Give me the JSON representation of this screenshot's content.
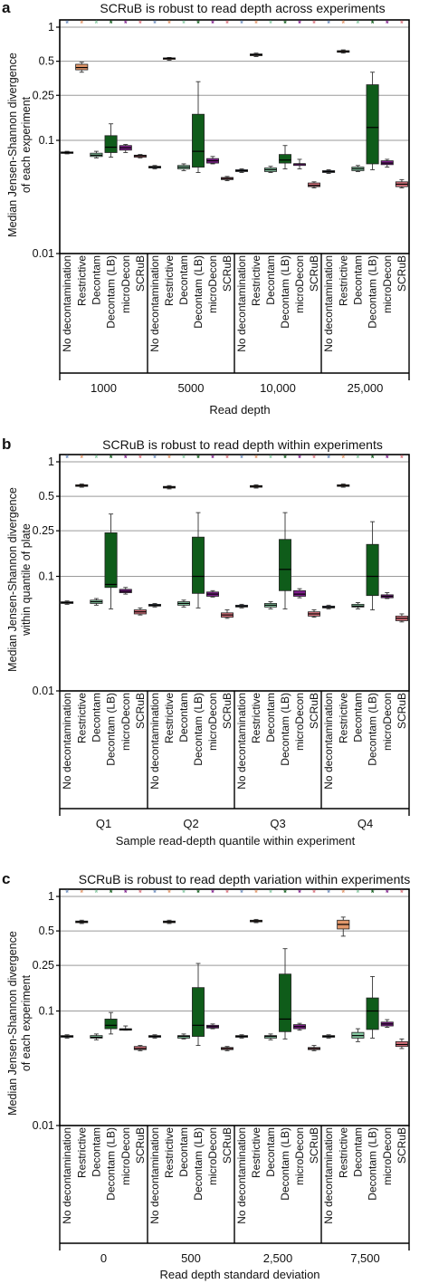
{
  "panel_letters": [
    "a",
    "b",
    "c"
  ],
  "methods": [
    "No decontamination",
    "Restrictive",
    "Decontam",
    "Decontam (LB)",
    "microDecon",
    "SCRuB"
  ],
  "method_colors": [
    "#6f8fbf",
    "#e2976a",
    "#86c9a2",
    "#0f5c1a",
    "#7f1e8c",
    "#d9727d"
  ],
  "ytick_labels": [
    "1",
    "0.5",
    "0.25",
    "0.1",
    "0.01"
  ],
  "chart_data": [
    {
      "type": "box",
      "title": "SCRuB is robust to read depth across experiments",
      "ylabel": [
        "Median Jensen-Shannon divergence",
        "of each experiment"
      ],
      "xlabel": "Read depth",
      "yscale": "log",
      "ylim": [
        0.01,
        1
      ],
      "yticks": [
        0.01,
        0.1,
        0.25,
        0.5,
        1
      ],
      "groups": [
        "1000",
        "5000",
        "10,000",
        "25,000"
      ],
      "boxes": [
        [
          [
            0.076,
            0.077,
            0.078,
            0.079,
            0.08
          ],
          [
            0.4,
            0.42,
            0.44,
            0.47,
            0.49
          ],
          [
            0.07,
            0.072,
            0.074,
            0.077,
            0.08
          ],
          [
            0.071,
            0.078,
            0.087,
            0.11,
            0.14
          ],
          [
            0.078,
            0.082,
            0.086,
            0.09,
            0.092
          ],
          [
            0.07,
            0.071,
            0.073,
            0.074,
            0.075
          ]
        ],
        [
          [
            0.056,
            0.057,
            0.058,
            0.059,
            0.06
          ],
          [
            0.51,
            0.52,
            0.53,
            0.535,
            0.54
          ],
          [
            0.054,
            0.056,
            0.058,
            0.06,
            0.062
          ],
          [
            0.052,
            0.058,
            0.08,
            0.17,
            0.33
          ],
          [
            0.062,
            0.063,
            0.066,
            0.069,
            0.072
          ],
          [
            0.044,
            0.045,
            0.046,
            0.047,
            0.048
          ]
        ],
        [
          [
            0.052,
            0.053,
            0.054,
            0.055,
            0.056
          ],
          [
            0.55,
            0.56,
            0.57,
            0.58,
            0.59
          ],
          [
            0.052,
            0.053,
            0.055,
            0.057,
            0.059
          ],
          [
            0.056,
            0.063,
            0.067,
            0.075,
            0.09
          ],
          [
            0.056,
            0.06,
            0.062,
            0.062,
            0.068
          ],
          [
            0.038,
            0.039,
            0.04,
            0.042,
            0.043
          ]
        ],
        [
          [
            0.051,
            0.052,
            0.053,
            0.054,
            0.055
          ],
          [
            0.59,
            0.6,
            0.61,
            0.62,
            0.63
          ],
          [
            0.053,
            0.054,
            0.056,
            0.058,
            0.06
          ],
          [
            0.055,
            0.062,
            0.13,
            0.31,
            0.4
          ],
          [
            0.058,
            0.061,
            0.063,
            0.066,
            0.068
          ],
          [
            0.038,
            0.039,
            0.041,
            0.043,
            0.045
          ]
        ]
      ]
    },
    {
      "type": "box",
      "title": "SCRuB is robust to read depth within experiments",
      "ylabel": [
        "Median Jensen-Shannon divergence",
        "within quantile of plate"
      ],
      "xlabel": "Sample read-depth quantile within experiment",
      "yscale": "log",
      "ylim": [
        0.01,
        1
      ],
      "yticks": [
        0.01,
        0.1,
        0.25,
        0.5,
        1
      ],
      "groups": [
        "Q1",
        "Q2",
        "Q3",
        "Q4"
      ],
      "boxes": [
        [
          [
            0.057,
            0.058,
            0.059,
            0.06,
            0.061
          ],
          [
            0.6,
            0.61,
            0.62,
            0.63,
            0.64
          ],
          [
            0.056,
            0.058,
            0.06,
            0.062,
            0.064
          ],
          [
            0.052,
            0.08,
            0.085,
            0.24,
            0.35
          ],
          [
            0.07,
            0.072,
            0.074,
            0.077,
            0.08
          ],
          [
            0.046,
            0.047,
            0.049,
            0.051,
            0.053
          ]
        ],
        [
          [
            0.054,
            0.055,
            0.056,
            0.057,
            0.058
          ],
          [
            0.58,
            0.59,
            0.6,
            0.61,
            0.62
          ],
          [
            0.054,
            0.056,
            0.058,
            0.06,
            0.062
          ],
          [
            0.053,
            0.071,
            0.1,
            0.22,
            0.36
          ],
          [
            0.066,
            0.067,
            0.07,
            0.073,
            0.075
          ],
          [
            0.043,
            0.044,
            0.046,
            0.048,
            0.051
          ]
        ],
        [
          [
            0.053,
            0.054,
            0.055,
            0.056,
            0.057
          ],
          [
            0.59,
            0.6,
            0.61,
            0.62,
            0.63
          ],
          [
            0.052,
            0.054,
            0.056,
            0.058,
            0.06
          ],
          [
            0.052,
            0.075,
            0.115,
            0.21,
            0.36
          ],
          [
            0.065,
            0.067,
            0.07,
            0.075,
            0.078
          ],
          [
            0.044,
            0.045,
            0.047,
            0.049,
            0.051
          ]
        ],
        [
          [
            0.052,
            0.053,
            0.054,
            0.055,
            0.056
          ],
          [
            0.6,
            0.61,
            0.62,
            0.63,
            0.64
          ],
          [
            0.052,
            0.054,
            0.055,
            0.057,
            0.059
          ],
          [
            0.051,
            0.068,
            0.1,
            0.19,
            0.3
          ],
          [
            0.064,
            0.065,
            0.067,
            0.069,
            0.072
          ],
          [
            0.04,
            0.041,
            0.043,
            0.045,
            0.047
          ]
        ]
      ]
    },
    {
      "type": "box",
      "title": "SCRuB is robust to read depth variation within experiments",
      "ylabel": [
        "Median Jensen-Shannon divergence",
        "of each experiment"
      ],
      "xlabel": "Read depth standard deviation",
      "yscale": "log",
      "ylim": [
        0.01,
        1
      ],
      "yticks": [
        0.01,
        0.1,
        0.25,
        0.5,
        1
      ],
      "groups": [
        "0",
        "500",
        "2,500",
        "7,500"
      ],
      "boxes": [
        [
          [
            0.058,
            0.059,
            0.06,
            0.061,
            0.062
          ],
          [
            0.58,
            0.59,
            0.6,
            0.61,
            0.62
          ],
          [
            0.056,
            0.058,
            0.059,
            0.061,
            0.063
          ],
          [
            0.063,
            0.07,
            0.075,
            0.085,
            0.097
          ],
          [
            0.068,
            0.068,
            0.069,
            0.07,
            0.074
          ],
          [
            0.045,
            0.046,
            0.047,
            0.049,
            0.05
          ]
        ],
        [
          [
            0.058,
            0.059,
            0.06,
            0.061,
            0.062
          ],
          [
            0.58,
            0.59,
            0.6,
            0.61,
            0.62
          ],
          [
            0.057,
            0.058,
            0.06,
            0.061,
            0.063
          ],
          [
            0.05,
            0.06,
            0.075,
            0.16,
            0.26
          ],
          [
            0.07,
            0.071,
            0.073,
            0.075,
            0.077
          ],
          [
            0.045,
            0.046,
            0.047,
            0.048,
            0.049
          ]
        ],
        [
          [
            0.058,
            0.059,
            0.06,
            0.061,
            0.062
          ],
          [
            0.59,
            0.6,
            0.61,
            0.62,
            0.63
          ],
          [
            0.056,
            0.058,
            0.06,
            0.061,
            0.063
          ],
          [
            0.057,
            0.066,
            0.085,
            0.21,
            0.35
          ],
          [
            0.068,
            0.07,
            0.073,
            0.076,
            0.078
          ],
          [
            0.045,
            0.046,
            0.047,
            0.048,
            0.05
          ]
        ],
        [
          [
            0.058,
            0.059,
            0.06,
            0.061,
            0.062
          ],
          [
            0.45,
            0.52,
            0.57,
            0.62,
            0.66
          ],
          [
            0.054,
            0.058,
            0.061,
            0.065,
            0.07
          ],
          [
            0.058,
            0.069,
            0.1,
            0.13,
            0.2
          ],
          [
            0.072,
            0.074,
            0.077,
            0.08,
            0.084
          ],
          [
            0.047,
            0.049,
            0.051,
            0.054,
            0.057
          ]
        ]
      ]
    }
  ]
}
